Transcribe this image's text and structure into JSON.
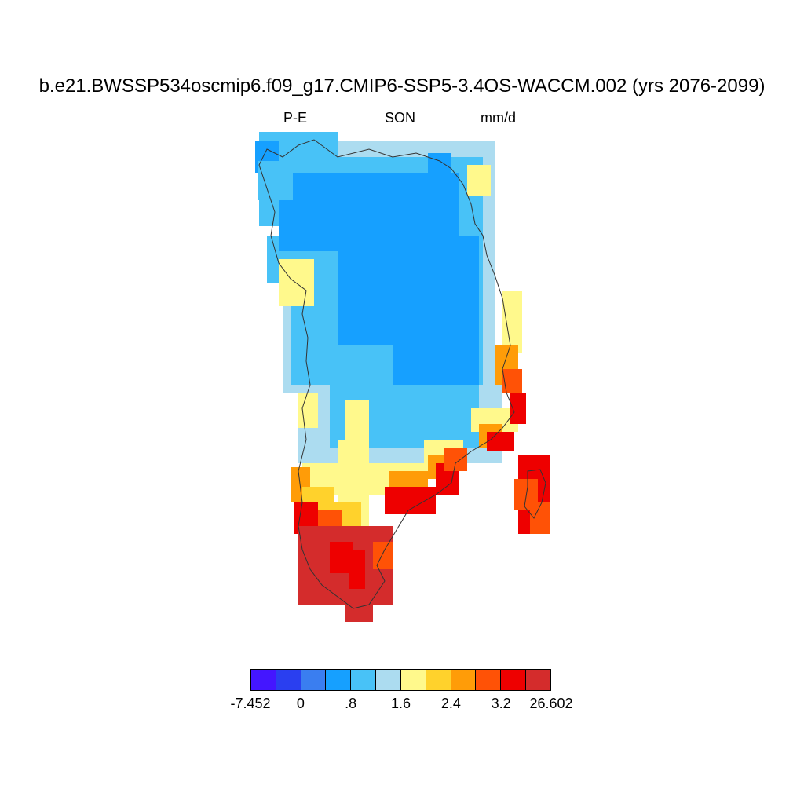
{
  "title": "b.e21.BWSSP534oscmip6.f09_g17.CMIP6-SSP5-3.4OS-WACCM.002 (yrs 2076-2099)",
  "subtitle": {
    "left": "P-E",
    "center": "SON",
    "right": "mm/d"
  },
  "colorbar": {
    "colors": [
      "#4416ff",
      "#2a3ff0",
      "#3a7ef0",
      "#16a0ff",
      "#48c2f7",
      "#acdcf0",
      "#fff98c",
      "#ffd22c",
      "#ff9c08",
      "#ff5206",
      "#ee0000",
      "#d42c2c"
    ],
    "labels": [
      "-7.452",
      "0",
      ".8",
      "1.6",
      "2.4",
      "3.2",
      "26.602"
    ]
  },
  "map": {
    "region": "Greenland",
    "palette_index_meaning": "colorbar.colors index per grid cell"
  }
}
